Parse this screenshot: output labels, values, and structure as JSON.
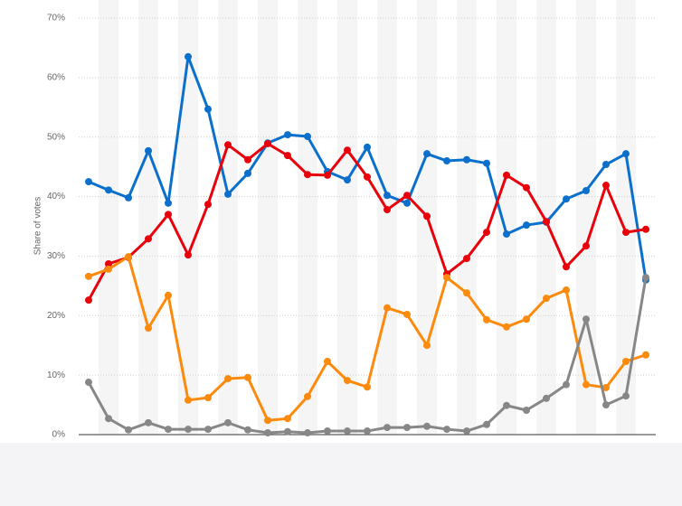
{
  "chart_data": {
    "type": "line",
    "y_label": "Share of votes",
    "categories": [
      null,
      null,
      null,
      null,
      null,
      null,
      null,
      null,
      null,
      null,
      null,
      null,
      null,
      null,
      null,
      null,
      null,
      null,
      null,
      null,
      null,
      null,
      null,
      null,
      null,
      null,
      null,
      null,
      null
    ],
    "series": [
      {
        "color": "#0b6fcc",
        "values": [
          42.5,
          41.1,
          39.8,
          47.7,
          38.9,
          63.5,
          54.7,
          40.4,
          43.9,
          49.0,
          50.4,
          50.1,
          44.2,
          42.8,
          48.3,
          40.2,
          38.9,
          47.2,
          46.0,
          46.2,
          45.6,
          33.7,
          35.2,
          35.7,
          39.6,
          41.0,
          45.4,
          47.2,
          26.0
        ]
      },
      {
        "color": "#e8000b",
        "values": [
          22.6,
          28.7,
          29.8,
          32.9,
          37.0,
          30.2,
          38.7,
          48.7,
          46.2,
          48.9,
          46.9,
          43.7,
          43.6,
          47.8,
          43.3,
          37.8,
          40.2,
          36.7,
          27.0,
          29.6,
          34.0,
          43.6,
          41.5,
          35.8,
          28.2,
          31.7,
          41.9,
          34.0,
          34.5
        ]
      },
      {
        "color": "#fc8a0c",
        "values": [
          26.6,
          27.8,
          29.9,
          17.9,
          23.4,
          5.8,
          6.2,
          9.4,
          9.6,
          2.4,
          2.7,
          6.4,
          12.3,
          9.1,
          8.0,
          21.3,
          20.2,
          15.0,
          26.4,
          23.8,
          19.3,
          18.1,
          19.4,
          22.9,
          24.3,
          8.4,
          7.9,
          12.3,
          13.4
        ]
      },
      {
        "color": "#878787",
        "values": [
          8.8,
          2.7,
          0.8,
          2.0,
          0.9,
          0.9,
          0.9,
          2.0,
          0.8,
          0.3,
          0.5,
          0.3,
          0.6,
          0.6,
          0.6,
          1.2,
          1.2,
          1.4,
          0.9,
          0.6,
          1.7,
          4.9,
          4.1,
          6.1,
          8.4,
          19.4,
          5.0,
          6.5,
          26.4
        ]
      }
    ],
    "ylim": [
      0,
      70
    ],
    "yticks": [
      {
        "value": 0,
        "label": "0%"
      },
      {
        "value": 10,
        "label": "10%"
      },
      {
        "value": 20,
        "label": "20%"
      },
      {
        "value": 30,
        "label": "30%"
      },
      {
        "value": 40,
        "label": "40%"
      },
      {
        "value": 50,
        "label": "50%"
      },
      {
        "value": 60,
        "label": "60%"
      },
      {
        "value": 70,
        "label": "70%"
      }
    ],
    "grid": true
  }
}
